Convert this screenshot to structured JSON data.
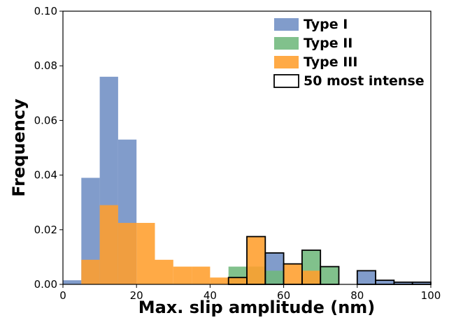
{
  "chart_data": {
    "type": "bar",
    "title": "",
    "xlabel": "Max. slip amplitude (nm)",
    "ylabel": "Frequency",
    "xlim": [
      0,
      100
    ],
    "ylim": [
      0,
      0.1
    ],
    "xticks": [
      "0",
      "20",
      "40",
      "60",
      "80",
      "100"
    ],
    "yticks": [
      "0.00",
      "0.02",
      "0.04",
      "0.06",
      "0.08",
      "0.10"
    ],
    "xtick_values": [
      0,
      20,
      40,
      60,
      80,
      100
    ],
    "ytick_values": [
      0,
      0.02,
      0.04,
      0.06,
      0.08,
      0.1
    ],
    "grid": false,
    "legend_position": "top-right",
    "bin_edges": [
      0,
      5,
      10,
      15,
      20,
      25,
      30,
      35,
      40,
      45,
      50,
      55,
      60,
      65,
      70,
      75,
      80,
      85,
      90,
      95,
      100
    ],
    "series": [
      {
        "name": "Type I",
        "color": "#6f8ec4",
        "values": [
          0.0015,
          0.039,
          0.076,
          0.053,
          0.0,
          0.0,
          0.0,
          0.0,
          0.0,
          0.0,
          0.0,
          0.0115,
          0.0,
          0.0,
          0.0,
          0.0,
          0.005,
          0.0015,
          0.0008,
          0.0008
        ]
      },
      {
        "name": "Type II",
        "color": "#6fb87c",
        "values": [
          0.0,
          0.0,
          0.0,
          0.0,
          0.0,
          0.0,
          0.0,
          0.0,
          0.0,
          0.0065,
          0.0065,
          0.005,
          0.0,
          0.0125,
          0.0065,
          0.0,
          0.0,
          0.0,
          0.0,
          0.0
        ]
      },
      {
        "name": "Type III",
        "color": "#ff9e2c",
        "values": [
          0.0,
          0.009,
          0.029,
          0.0225,
          0.0225,
          0.009,
          0.0065,
          0.0065,
          0.0025,
          0.0025,
          0.0175,
          0.0,
          0.0075,
          0.005,
          0.0,
          0.0,
          0.0,
          0.0,
          0.0,
          0.0
        ]
      },
      {
        "name": "50 most intense",
        "style": "step-outline",
        "values": [
          0.0,
          0.0,
          0.0,
          0.0,
          0.0,
          0.0,
          0.0,
          0.0,
          0.0,
          0.0025,
          0.0175,
          0.0115,
          0.0075,
          0.0125,
          0.0065,
          0.0,
          0.005,
          0.0015,
          0.0008,
          0.0008
        ]
      }
    ]
  }
}
